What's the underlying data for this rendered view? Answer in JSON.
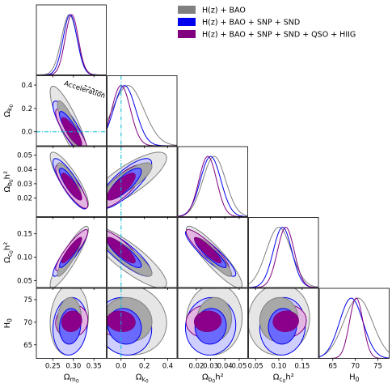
{
  "chart_data": {
    "type": "corner",
    "legend": {
      "placement": "top-right",
      "entries": [
        {
          "name": "H(z) + BAO",
          "color": "#808080"
        },
        {
          "name": "H(z) + BAO + SNP + SND",
          "color": "#0000ee"
        },
        {
          "name": "H(z) + BAO + SNP + SND + QSO + HIIG",
          "color": "#800080"
        }
      ]
    },
    "parameters": [
      {
        "label": "Ω_m0",
        "label_main": "Ω",
        "label_sub": "m",
        "label_subsub": "0",
        "range": [
          0.21,
          0.38
        ],
        "ticks": [
          0.25,
          0.3,
          0.35
        ],
        "tick_labels": [
          "0.25",
          "0.30",
          "0.35"
        ]
      },
      {
        "label": "Ω_k0",
        "label_main": "Ω",
        "label_sub": "k",
        "label_subsub": "0",
        "range": [
          -0.12,
          0.48
        ],
        "ticks": [
          0.0,
          0.2,
          0.4
        ],
        "tick_labels": [
          "0.0",
          "0.2",
          "0.4"
        ]
      },
      {
        "label": "Ω_b0 h²",
        "label_main": "Ω",
        "label_sub": "b",
        "label_subsub": "0",
        "label_suffix": "h²",
        "range": [
          0.007,
          0.056
        ],
        "ticks": [
          0.02,
          0.03,
          0.04,
          0.05
        ],
        "tick_labels": [
          "0.02",
          "0.03",
          "0.04",
          "0.05"
        ]
      },
      {
        "label": "Ω_c0 h²",
        "label_main": "Ω",
        "label_sub": "c",
        "label_subsub": "0",
        "label_suffix": "h²",
        "range": [
          0.035,
          0.185
        ],
        "ticks": [
          0.05,
          0.1,
          0.15
        ],
        "tick_labels": [
          "0.05",
          "0.10",
          "0.15"
        ]
      },
      {
        "label": "H_0",
        "label_main": "H",
        "label_sub": "0",
        "range": [
          62,
          77.5
        ],
        "ticks": [
          65,
          70,
          75
        ],
        "tick_labels": [
          "65",
          "70",
          "75"
        ]
      }
    ],
    "series": [
      {
        "name": "H(z) + BAO",
        "color": "#808080",
        "mean": [
          0.29,
          0.06,
          0.0325,
          0.1,
          70.6
        ],
        "sigma": [
          0.019,
          0.135,
          0.008,
          0.027,
          3.2
        ]
      },
      {
        "name": "H(z) + BAO + SNP + SND",
        "color": "#0000ee",
        "mean": [
          0.292,
          0.03,
          0.03,
          0.108,
          69.1
        ],
        "sigma": [
          0.017,
          0.095,
          0.0072,
          0.02,
          2.6
        ]
      },
      {
        "name": "H(z) + BAO + SNP + SND + QSO + HIIG",
        "color": "#800080",
        "mean": [
          0.296,
          0.0,
          0.028,
          0.115,
          70.2
        ],
        "sigma": [
          0.016,
          0.08,
          0.0062,
          0.018,
          1.5
        ]
      }
    ],
    "correlations": [
      [
        1.0,
        -0.85,
        -0.85,
        0.9,
        0.1
      ],
      [
        -0.85,
        1.0,
        0.8,
        -0.85,
        -0.1
      ],
      [
        -0.85,
        0.8,
        1.0,
        -0.9,
        0.05
      ],
      [
        0.9,
        -0.85,
        -0.9,
        1.0,
        0.05
      ],
      [
        0.1,
        -0.1,
        0.05,
        0.05,
        1.0
      ]
    ],
    "reference_lines": {
      "Ω_k0": 0.0,
      "color": "#00bcd4"
    },
    "annotation": {
      "text": "Acceleration",
      "panel": "Ω_k0 vs Ω_m0",
      "color": "#000000"
    },
    "grid": false
  }
}
